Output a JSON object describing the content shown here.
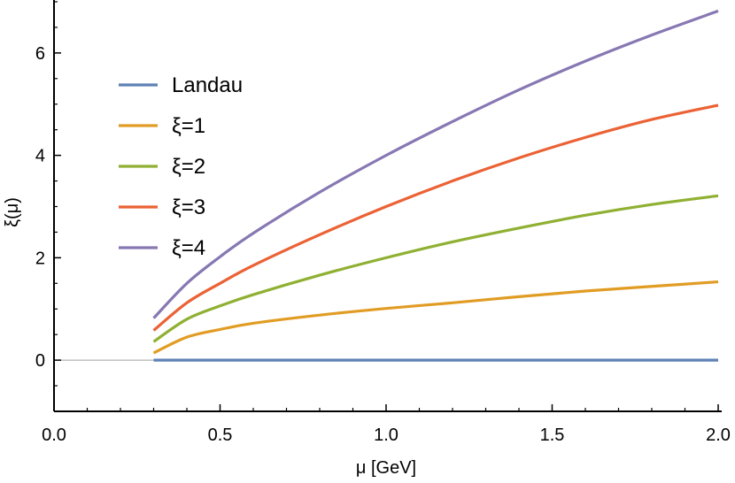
{
  "chart_data": {
    "type": "line",
    "xlabel": "μ [GeV]",
    "ylabel": "ξ(μ)",
    "xlim": [
      0.0,
      2.0
    ],
    "ylim": [
      -1.0,
      7.0
    ],
    "x_ticks": [
      "0.0",
      "0.5",
      "1.0",
      "1.5",
      "2.0"
    ],
    "y_ticks": [
      "0",
      "2",
      "4",
      "6"
    ],
    "legend_position": "upper-left",
    "grid": false,
    "series": [
      {
        "name": "Landau",
        "color": "#5e81b5",
        "x": [
          0.3,
          0.5,
          0.75,
          1.0,
          1.25,
          1.5,
          1.75,
          2.0
        ],
        "y": [
          0.0,
          0.0,
          0.0,
          0.0,
          0.0,
          0.0,
          0.0,
          0.0
        ]
      },
      {
        "name": "ξ=1",
        "color": "#e19c24",
        "x": [
          0.3,
          0.4,
          0.5,
          0.6,
          0.8,
          1.0,
          1.2,
          1.4,
          1.6,
          1.8,
          2.0
        ],
        "y": [
          0.14,
          0.45,
          0.6,
          0.72,
          0.88,
          1.01,
          1.12,
          1.24,
          1.35,
          1.44,
          1.53
        ]
      },
      {
        "name": "ξ=2",
        "color": "#8fb032",
        "x": [
          0.3,
          0.4,
          0.5,
          0.6,
          0.8,
          1.0,
          1.2,
          1.4,
          1.6,
          1.8,
          2.0
        ],
        "y": [
          0.36,
          0.8,
          1.06,
          1.28,
          1.66,
          2.0,
          2.31,
          2.58,
          2.83,
          3.04,
          3.21
        ]
      },
      {
        "name": "ξ=3",
        "color": "#eb6235",
        "x": [
          0.3,
          0.4,
          0.5,
          0.6,
          0.8,
          1.0,
          1.2,
          1.4,
          1.6,
          1.8,
          2.0
        ],
        "y": [
          0.58,
          1.12,
          1.5,
          1.85,
          2.45,
          3.0,
          3.5,
          3.95,
          4.35,
          4.7,
          4.98
        ]
      },
      {
        "name": "ξ=4",
        "color": "#8778b3",
        "x": [
          0.3,
          0.4,
          0.5,
          0.6,
          0.8,
          1.0,
          1.2,
          1.4,
          1.6,
          1.8,
          2.0
        ],
        "y": [
          0.82,
          1.5,
          2.02,
          2.48,
          3.28,
          4.0,
          4.66,
          5.28,
          5.84,
          6.35,
          6.82
        ]
      }
    ]
  }
}
